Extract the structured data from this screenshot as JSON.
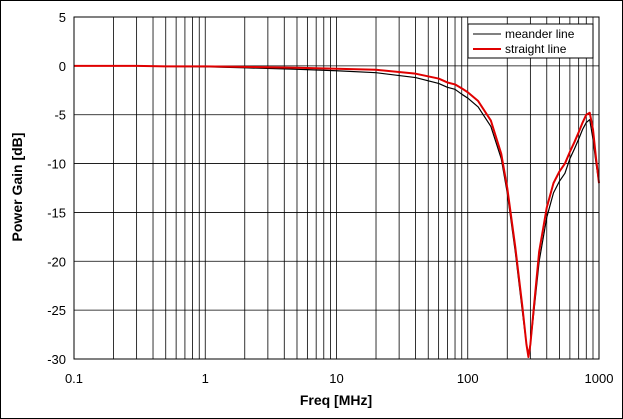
{
  "chart_data": {
    "type": "line",
    "xlabel": "Freq [MHz]",
    "ylabel": "Power Gain  [dB]",
    "x_scale": "log",
    "xlim": [
      0.1,
      1000
    ],
    "ylim": [
      -30,
      5
    ],
    "x_ticks": [
      0.1,
      1,
      10,
      100,
      1000
    ],
    "x_tick_labels": [
      "0.1",
      "1",
      "10",
      "100",
      "1000"
    ],
    "y_ticks": [
      5,
      0,
      -5,
      -10,
      -15,
      -20,
      -25,
      -30
    ],
    "y_tick_labels": [
      "5",
      "0",
      "-5",
      "-10",
      "-15",
      "-20",
      "-25",
      "-30"
    ],
    "grid": true,
    "legend_position": "top-right",
    "series": [
      {
        "name": "meander line",
        "color": "#000000",
        "x": [
          0.1,
          0.3,
          0.5,
          1,
          2,
          5,
          10,
          20,
          40,
          60,
          70,
          80,
          90,
          100,
          120,
          150,
          180,
          200,
          230,
          260,
          280,
          290,
          300,
          320,
          350,
          400,
          450,
          500,
          550,
          600,
          650,
          700,
          750,
          800,
          850,
          900,
          950,
          1000
        ],
        "y": [
          0,
          0,
          -0.05,
          -0.1,
          -0.2,
          -0.35,
          -0.5,
          -0.7,
          -1.2,
          -1.8,
          -2.2,
          -2.4,
          -2.9,
          -3.3,
          -4.2,
          -6.2,
          -9.5,
          -13,
          -19,
          -25,
          -28.5,
          -29.5,
          -28.5,
          -25,
          -20,
          -15.5,
          -13,
          -11.8,
          -11,
          -9.5,
          -8.5,
          -7.5,
          -6.5,
          -5.8,
          -5.5,
          -7.5,
          -10,
          -12
        ]
      },
      {
        "name": "straight line",
        "color": "#e00000",
        "x": [
          0.1,
          0.3,
          0.5,
          1,
          2,
          5,
          10,
          20,
          40,
          60,
          70,
          80,
          90,
          100,
          120,
          150,
          180,
          200,
          230,
          260,
          280,
          290,
          300,
          320,
          350,
          400,
          450,
          500,
          550,
          600,
          650,
          700,
          750,
          800,
          850,
          900,
          950,
          1000
        ],
        "y": [
          0,
          0,
          -0.05,
          -0.05,
          -0.1,
          -0.2,
          -0.3,
          -0.4,
          -0.8,
          -1.3,
          -1.7,
          -1.9,
          -2.3,
          -2.7,
          -3.6,
          -5.6,
          -9,
          -12.5,
          -18.5,
          -24.5,
          -28.5,
          -29.8,
          -28.5,
          -24.5,
          -19,
          -14.5,
          -12,
          -10.8,
          -10,
          -8.8,
          -7.8,
          -6.8,
          -5.8,
          -5,
          -4.8,
          -6.5,
          -9.5,
          -12
        ]
      }
    ]
  }
}
